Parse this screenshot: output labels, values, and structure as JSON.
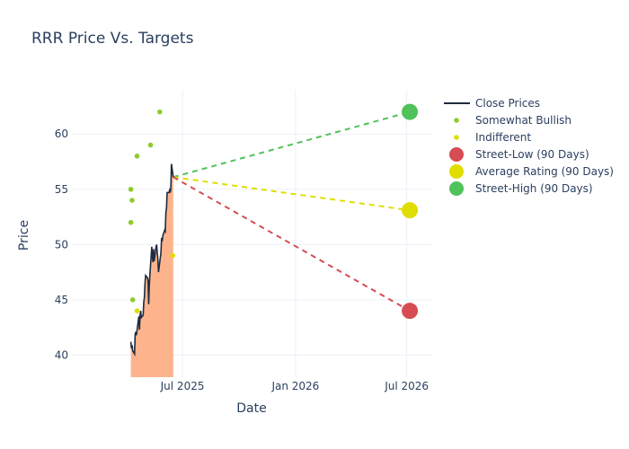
{
  "title": "RRR Price Vs. Targets",
  "chart_data": {
    "type": "line",
    "title": "RRR Price Vs. Targets",
    "xlabel": "Date",
    "ylabel": "Price",
    "x_range": [
      "2025-01-02",
      "2026-08-10"
    ],
    "ylim": [
      38,
      64
    ],
    "y_ticks": [
      40,
      45,
      50,
      55,
      60
    ],
    "x_ticks": [
      {
        "date": "2025-07-01",
        "label": "Jul 2025"
      },
      {
        "date": "2026-01-01",
        "label": "Jan 2026"
      },
      {
        "date": "2026-07-01",
        "label": "Jul 2026"
      }
    ],
    "grid": true,
    "legend_position": "right",
    "close_prices": {
      "name": "Close Prices",
      "color": "#1f2b3f",
      "fill_color": "#fdb48c",
      "points": [
        [
          "2025-04-08",
          41.2
        ],
        [
          "2025-04-09",
          40.6
        ],
        [
          "2025-04-10",
          40.9
        ],
        [
          "2025-04-11",
          40.4
        ],
        [
          "2025-04-14",
          40.1
        ],
        [
          "2025-04-15",
          41.9
        ],
        [
          "2025-04-16",
          42.1
        ],
        [
          "2025-04-17",
          41.8
        ],
        [
          "2025-04-21",
          43.5
        ],
        [
          "2025-04-22",
          42.3
        ],
        [
          "2025-04-23",
          43.6
        ],
        [
          "2025-04-24",
          44.0
        ],
        [
          "2025-04-25",
          43.4
        ],
        [
          "2025-04-28",
          43.6
        ],
        [
          "2025-04-29",
          44.8
        ],
        [
          "2025-04-30",
          45.2
        ],
        [
          "2025-05-01",
          46.5
        ],
        [
          "2025-05-02",
          47.2
        ],
        [
          "2025-05-05",
          47.0
        ],
        [
          "2025-05-06",
          46.8
        ],
        [
          "2025-05-07",
          44.6
        ],
        [
          "2025-05-08",
          46.3
        ],
        [
          "2025-05-09",
          47.3
        ],
        [
          "2025-05-12",
          49.8
        ],
        [
          "2025-05-13",
          48.9
        ],
        [
          "2025-05-14",
          48.4
        ],
        [
          "2025-05-15",
          49.6
        ],
        [
          "2025-05-16",
          48.5
        ],
        [
          "2025-05-19",
          49.8
        ],
        [
          "2025-05-20",
          50.0
        ],
        [
          "2025-05-21",
          49.2
        ],
        [
          "2025-05-22",
          48.6
        ],
        [
          "2025-05-23",
          47.5
        ],
        [
          "2025-05-27",
          49.3
        ],
        [
          "2025-05-28",
          50.6
        ],
        [
          "2025-05-29",
          50.3
        ],
        [
          "2025-05-30",
          50.8
        ],
        [
          "2025-06-02",
          51.3
        ],
        [
          "2025-06-03",
          51.2
        ],
        [
          "2025-06-04",
          52.9
        ],
        [
          "2025-06-05",
          53.3
        ],
        [
          "2025-06-06",
          54.7
        ],
        [
          "2025-06-09",
          54.7
        ],
        [
          "2025-06-10",
          54.9
        ],
        [
          "2025-06-11",
          54.7
        ],
        [
          "2025-06-12",
          55.0
        ],
        [
          "2025-06-13",
          57.3
        ],
        [
          "2025-06-16",
          56.1
        ]
      ]
    },
    "series": [
      {
        "name": "Somewhat Bullish",
        "color": "#8fcc2e",
        "marker": "dot",
        "points": [
          [
            "2025-04-08",
            52
          ],
          [
            "2025-04-08",
            55
          ],
          [
            "2025-04-10",
            54
          ],
          [
            "2025-04-11",
            45
          ],
          [
            "2025-04-18",
            58
          ],
          [
            "2025-05-10",
            59
          ],
          [
            "2025-05-25",
            62
          ]
        ]
      },
      {
        "name": "Indifferent",
        "color": "#e0dd00",
        "marker": "dot",
        "points": [
          [
            "2025-04-18",
            44
          ],
          [
            "2025-06-15",
            49
          ]
        ]
      },
      {
        "name": "Street-Low (90 Days)",
        "color": "#d64c52",
        "marker": "large",
        "points": [
          [
            "2026-07-06",
            44.0
          ]
        ]
      },
      {
        "name": "Average Rating (90 Days)",
        "color": "#e0dd00",
        "marker": "large",
        "points": [
          [
            "2026-07-06",
            53.1
          ]
        ]
      },
      {
        "name": "Street-High (90 Days)",
        "color": "#4fc25a",
        "marker": "large",
        "points": [
          [
            "2026-07-06",
            62.0
          ]
        ]
      }
    ],
    "projections": [
      {
        "target": "Street-High (90 Days)",
        "color": "#4fc25a",
        "from": [
          "2025-06-16",
          56.1
        ],
        "to": [
          "2026-07-06",
          62.0
        ]
      },
      {
        "target": "Average Rating (90 Days)",
        "color": "#e0dd00",
        "from": [
          "2025-06-16",
          56.1
        ],
        "to": [
          "2026-07-06",
          53.1
        ]
      },
      {
        "target": "Street-Low (90 Days)",
        "color": "#d64c52",
        "from": [
          "2025-06-16",
          56.1
        ],
        "to": [
          "2026-07-06",
          44.0
        ]
      }
    ]
  }
}
